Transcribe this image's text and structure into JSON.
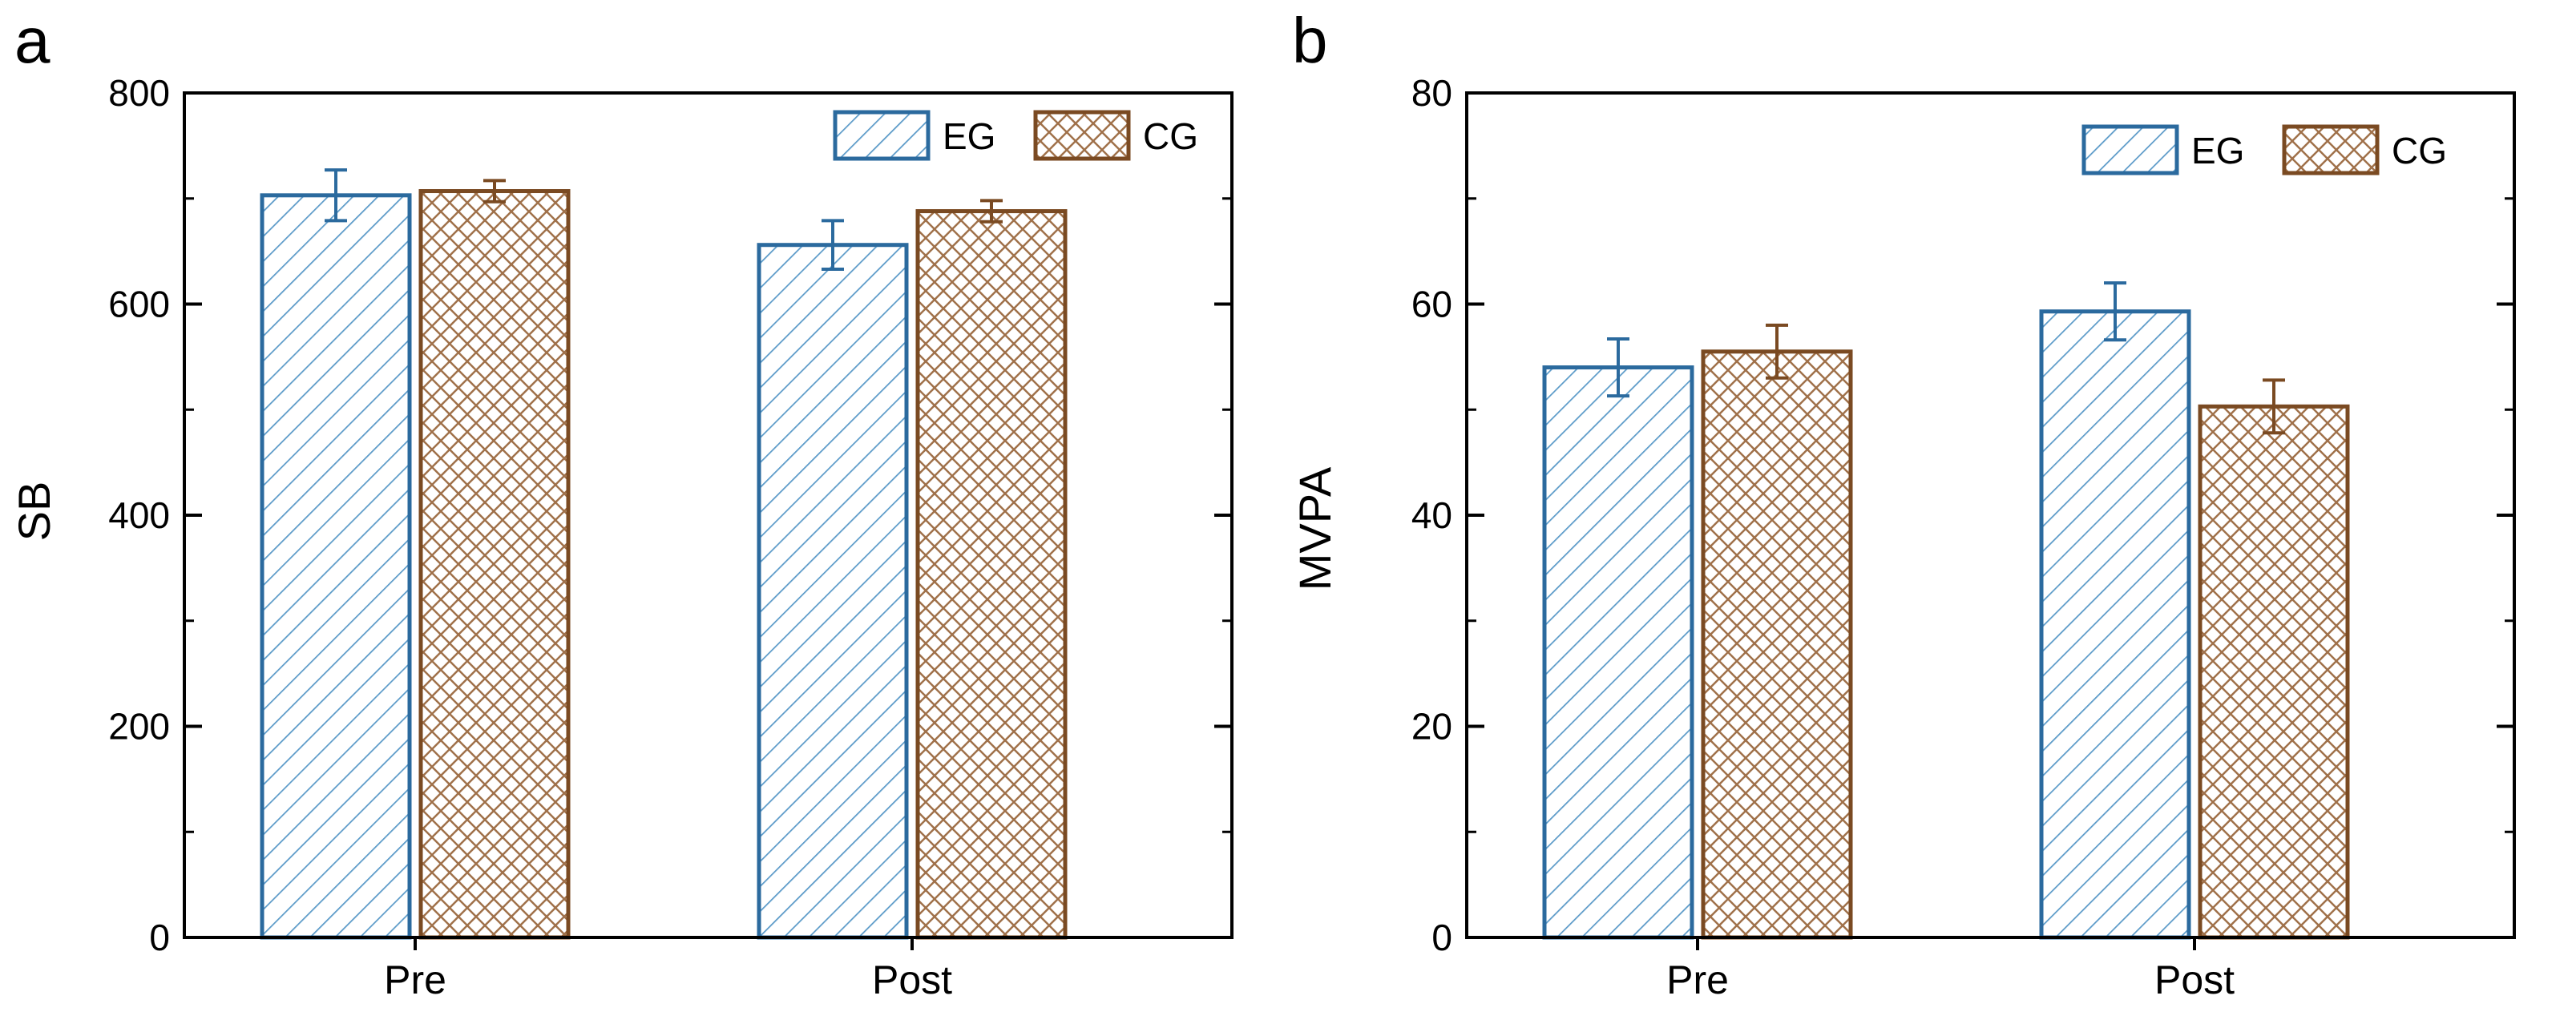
{
  "colors": {
    "eg": "#2b6a9e",
    "cg": "#7a4a22",
    "axis": "#000000"
  },
  "legend": [
    {
      "key": "eg",
      "label": "EG",
      "pattern": "diagonal-hatch"
    },
    {
      "key": "cg",
      "label": "CG",
      "pattern": "cross-hatch"
    }
  ],
  "chart_data": [
    {
      "type": "bar",
      "panel": "a",
      "categories": [
        "Pre",
        "Post"
      ],
      "series": [
        {
          "name": "EG",
          "values": [
            703,
            656
          ],
          "errors": [
            24,
            23
          ]
        },
        {
          "name": "CG",
          "values": [
            707,
            688
          ],
          "errors": [
            10,
            10
          ]
        }
      ],
      "ylabel": "SB",
      "xlabel": "",
      "ylim": [
        0,
        800
      ],
      "yticks": [
        0,
        200,
        400,
        600,
        800
      ],
      "legend_position": "top-right"
    },
    {
      "type": "bar",
      "panel": "b",
      "categories": [
        "Pre",
        "Post"
      ],
      "series": [
        {
          "name": "EG",
          "values": [
            54.0,
            59.3
          ],
          "errors": [
            2.7,
            2.7
          ]
        },
        {
          "name": "CG",
          "values": [
            55.5,
            50.3
          ],
          "errors": [
            2.5,
            2.5
          ]
        }
      ],
      "ylabel": "MVPA",
      "xlabel": "",
      "ylim": [
        0,
        80
      ],
      "yticks": [
        0,
        20,
        40,
        60,
        80
      ],
      "legend_position": "top-right"
    }
  ]
}
